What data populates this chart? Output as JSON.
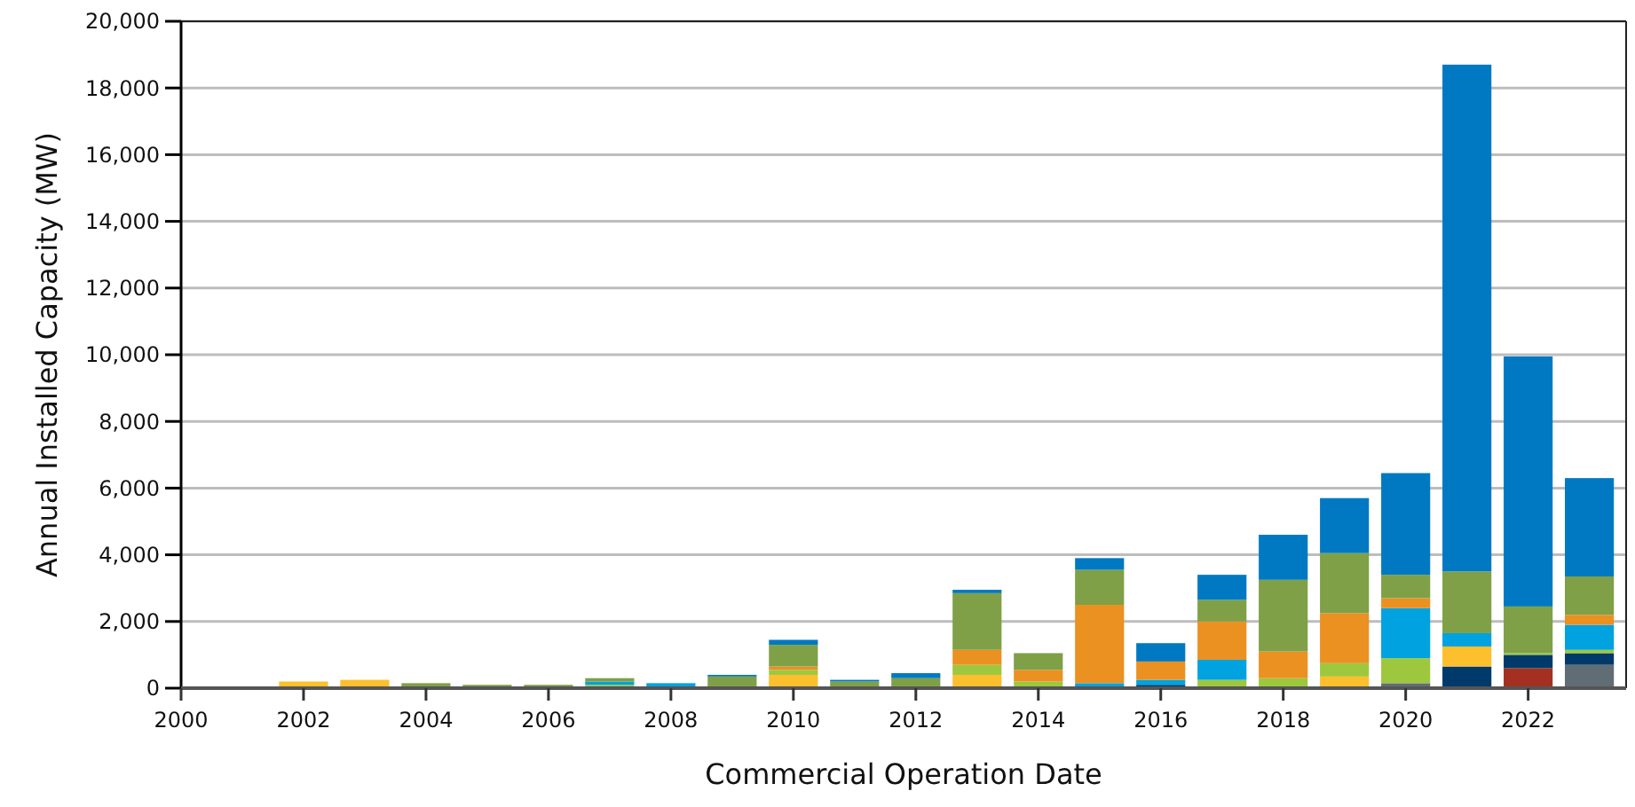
{
  "chart_data": {
    "type": "bar",
    "stacked": true,
    "xlabel": "Commercial Operation Date",
    "ylabel": "Annual Installed Capacity (MW)",
    "x": [
      2001,
      2002,
      2003,
      2004,
      2005,
      2006,
      2007,
      2008,
      2009,
      2010,
      2011,
      2012,
      2013,
      2014,
      2015,
      2016,
      2017,
      2018,
      2019,
      2020,
      2021,
      2022,
      2023
    ],
    "xlim": [
      2000,
      2023.6
    ],
    "xticks": [
      2000,
      2002,
      2004,
      2006,
      2008,
      2010,
      2012,
      2014,
      2016,
      2018,
      2020,
      2022
    ],
    "ylim": [
      0,
      20000
    ],
    "yticks": [
      {
        "value": 0,
        "label": "0"
      },
      {
        "value": 2000,
        "label": "2,000"
      },
      {
        "value": 4000,
        "label": "4,000"
      },
      {
        "value": 6000,
        "label": "6,000"
      },
      {
        "value": 8000,
        "label": "8,000"
      },
      {
        "value": 10000,
        "label": "10,000"
      },
      {
        "value": 12000,
        "label": "12,000"
      },
      {
        "value": 14000,
        "label": "14,000"
      },
      {
        "value": 16000,
        "label": "16,000"
      },
      {
        "value": 18000,
        "label": "18,000"
      },
      {
        "value": 20000,
        "label": "20,000"
      }
    ],
    "grid": "y",
    "series": [
      {
        "color": "#616d74",
        "values": [
          0,
          0,
          0,
          0,
          0,
          0,
          0,
          0,
          0,
          0,
          0,
          0,
          0,
          0,
          0,
          0,
          0,
          0,
          0,
          150,
          null,
          0,
          700
        ]
      },
      {
        "color": "#a33020",
        "values": [
          0,
          0,
          0,
          0,
          0,
          0,
          0,
          0,
          0,
          0,
          0,
          0,
          0,
          0,
          0,
          0,
          0,
          0,
          0,
          0,
          0,
          600,
          0
        ]
      },
      {
        "color": "#003a6a",
        "values": [
          0,
          0,
          0,
          0,
          0,
          0,
          0,
          0,
          0,
          0,
          0,
          0,
          0,
          0,
          0,
          100,
          0,
          0,
          0,
          0,
          650,
          400,
          350
        ]
      },
      {
        "color": "#fdbf2d",
        "values": [
          0,
          200,
          250,
          0,
          0,
          0,
          0,
          0,
          0,
          400,
          0,
          0,
          400,
          0,
          0,
          0,
          0,
          0,
          350,
          0,
          600,
          0,
          0
        ]
      },
      {
        "color": "#9dc83e",
        "values": [
          0,
          0,
          0,
          0,
          0,
          0,
          100,
          0,
          0,
          150,
          0,
          0,
          300,
          200,
          0,
          0,
          250,
          300,
          400,
          750,
          0,
          50,
          100
        ]
      },
      {
        "color": "#00a2e0",
        "values": [
          0,
          0,
          0,
          0,
          0,
          0,
          100,
          150,
          0,
          0,
          0,
          0,
          0,
          0,
          150,
          150,
          600,
          0,
          0,
          1500,
          400,
          0,
          750
        ]
      },
      {
        "color": "#ea9122",
        "values": [
          null,
          0,
          0,
          0,
          0,
          0,
          0,
          0,
          0,
          100,
          0,
          0,
          450,
          350,
          2350,
          550,
          1150,
          800,
          1500,
          300,
          0,
          0,
          300
        ]
      },
      {
        "color": "#7fa046",
        "values": [
          0,
          0,
          0,
          150,
          100,
          100,
          100,
          0,
          350,
          650,
          200,
          300,
          1700,
          500,
          1050,
          0,
          650,
          2150,
          1800,
          700,
          1850,
          1400,
          1150
        ]
      },
      {
        "color": "#0079c2",
        "values": [
          0,
          0,
          0,
          0,
          0,
          0,
          0,
          0,
          50,
          150,
          50,
          150,
          100,
          0,
          350,
          550,
          750,
          1350,
          1650,
          3050,
          15200,
          7500,
          2950
        ]
      }
    ]
  }
}
